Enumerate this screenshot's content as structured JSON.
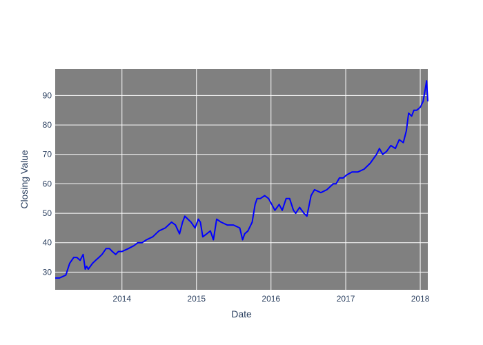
{
  "chart_data": {
    "type": "line",
    "title": "",
    "xlabel": "Date",
    "ylabel": "Closing Value",
    "x_ticks": [
      "2014",
      "2015",
      "2016",
      "2017",
      "2018"
    ],
    "y_ticks": [
      30,
      40,
      50,
      60,
      70,
      80,
      90
    ],
    "xlim": [
      "2013-02-08",
      "2018-02-07"
    ],
    "ylim": [
      24,
      99
    ],
    "grid": true,
    "legend": "none",
    "colors": {
      "line": "#0000ff",
      "plot_bg": "#808080",
      "grid": "#ffffff",
      "text": "#2a3f5f"
    },
    "series": [
      {
        "x": [
          "2013-02-08",
          "2013-03-01",
          "2013-04-01",
          "2013-04-20",
          "2013-05-10",
          "2013-05-25",
          "2013-06-10",
          "2013-06-25",
          "2013-07-05",
          "2013-07-12",
          "2013-07-20",
          "2013-08-10",
          "2013-08-25",
          "2013-09-10",
          "2013-09-25",
          "2013-10-15",
          "2013-11-01",
          "2013-11-15",
          "2013-12-01",
          "2013-12-15",
          "2014-01-01",
          "2014-02-01",
          "2014-03-01",
          "2014-03-20",
          "2014-04-10",
          "2014-05-01",
          "2014-06-01",
          "2014-07-01",
          "2014-08-01",
          "2014-09-01",
          "2014-09-20",
          "2014-10-10",
          "2014-10-25",
          "2014-11-05",
          "2014-11-20",
          "2014-12-05",
          "2014-12-25",
          "2015-01-10",
          "2015-01-20",
          "2015-02-01",
          "2015-02-20",
          "2015-03-10",
          "2015-03-25",
          "2015-04-10",
          "2015-05-01",
          "2015-06-01",
          "2015-07-01",
          "2015-08-01",
          "2015-08-15",
          "2015-08-25",
          "2015-09-10",
          "2015-10-01",
          "2015-10-15",
          "2015-10-25",
          "2015-11-10",
          "2015-12-01",
          "2015-12-20",
          "2016-01-05",
          "2016-01-20",
          "2016-02-10",
          "2016-02-25",
          "2016-03-15",
          "2016-04-01",
          "2016-04-20",
          "2016-05-01",
          "2016-05-20",
          "2016-06-10",
          "2016-06-25",
          "2016-07-15",
          "2016-08-01",
          "2016-09-01",
          "2016-10-01",
          "2016-11-01",
          "2016-11-15",
          "2016-12-01",
          "2016-12-20",
          "2017-01-05",
          "2017-02-01",
          "2017-03-01",
          "2017-04-01",
          "2017-05-01",
          "2017-06-01",
          "2017-06-15",
          "2017-07-01",
          "2017-07-20",
          "2017-08-10",
          "2017-09-01",
          "2017-09-20",
          "2017-10-10",
          "2017-10-25",
          "2017-11-05",
          "2017-11-20",
          "2017-12-01",
          "2017-12-15",
          "2018-01-01",
          "2018-01-15",
          "2018-01-25",
          "2018-02-01",
          "2018-02-07"
        ],
        "y": [
          28,
          28,
          29,
          33,
          35,
          35,
          34,
          36,
          31,
          32,
          31,
          33,
          34,
          35,
          36,
          38,
          38,
          37,
          36,
          37,
          37,
          38,
          39,
          40,
          40,
          41,
          42,
          44,
          45,
          47,
          46,
          43,
          47,
          49,
          48,
          47,
          45,
          48,
          47,
          42,
          43,
          44,
          41,
          48,
          47,
          46,
          46,
          45,
          41,
          43,
          44,
          47,
          53,
          55,
          55,
          56,
          55,
          53,
          51,
          53,
          51,
          55,
          55,
          51,
          50,
          52,
          50,
          49,
          56,
          58,
          57,
          58,
          60,
          60,
          62,
          62,
          63,
          64,
          64,
          65,
          67,
          70,
          72,
          70,
          71,
          73,
          72,
          75,
          74,
          78,
          84,
          83,
          85,
          85,
          86,
          88,
          92,
          95,
          88
        ]
      }
    ]
  }
}
